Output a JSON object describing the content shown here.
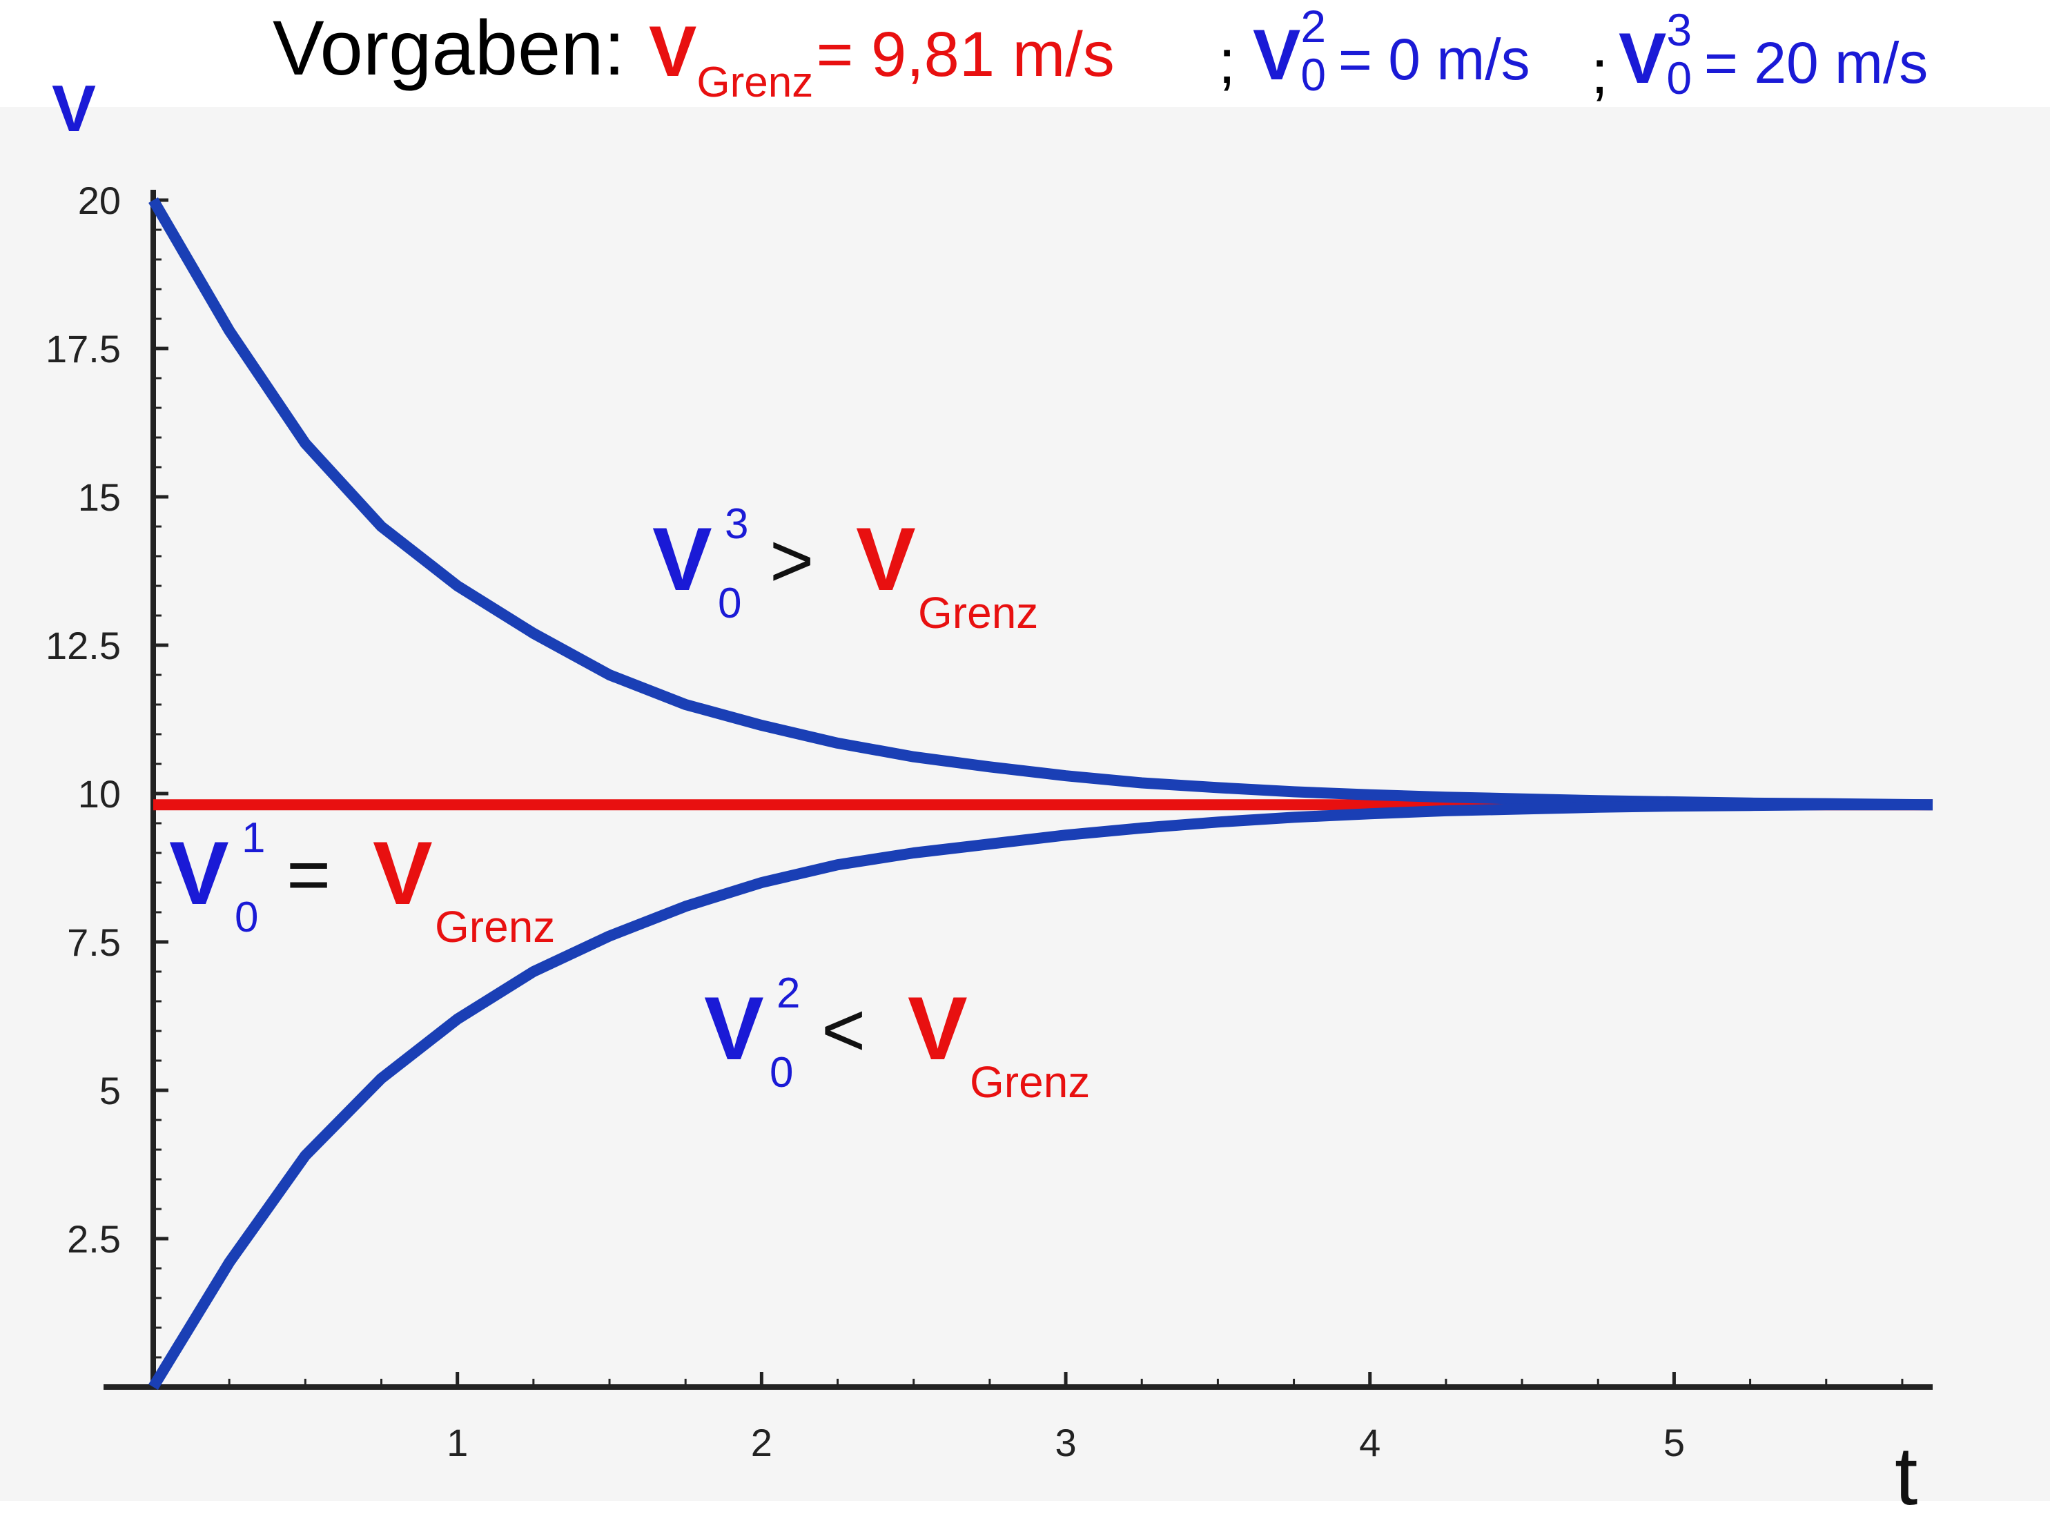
{
  "header": {
    "prefix": "Vorgaben:",
    "items": [
      {
        "symbol": "V",
        "sub": "Grenz",
        "sup": "",
        "rest": "= 9,81 m/s",
        "color": "#e81010"
      },
      {
        "sep": ";",
        "symbol": "V",
        "sub": "0",
        "sup": "2",
        "rest": "= 0 m/s",
        "color": "#1a1ad6"
      },
      {
        "sep": ";",
        "symbol": "V",
        "sub": "0",
        "sup": "3",
        "rest": "= 20 m/s",
        "color": "#1a1ad6"
      }
    ]
  },
  "chart_data": {
    "type": "line",
    "xlabel": "t",
    "ylabel": "V",
    "xlim": [
      -0.15,
      5.9
    ],
    "ylim": [
      -0.05,
      20
    ],
    "xticks": [
      1,
      2,
      3,
      4,
      5
    ],
    "yticks": [
      2.5,
      5,
      7.5,
      10,
      12.5,
      15,
      17.5,
      20
    ],
    "ytick_labels": [
      "2.5",
      "5",
      "7.5",
      "10",
      "12.5",
      "15",
      "17.5",
      "20"
    ],
    "xtick_labels": [
      "1",
      "2",
      "3",
      "4",
      "5"
    ],
    "series": [
      {
        "color": "#e81010",
        "x": [
          0,
          5.85
        ],
        "y": [
          9.81,
          9.81
        ]
      },
      {
        "color": "#1a3fb5",
        "x": [
          0,
          0.25,
          0.5,
          0.75,
          1,
          1.25,
          1.5,
          1.75,
          2,
          2.25,
          2.5,
          2.75,
          3,
          3.25,
          3.5,
          3.75,
          4,
          4.25,
          4.5,
          4.75,
          5,
          5.25,
          5.5,
          5.85
        ],
        "y": [
          20,
          17.8,
          15.9,
          14.5,
          13.5,
          12.7,
          12.0,
          11.5,
          11.15,
          10.85,
          10.62,
          10.45,
          10.3,
          10.18,
          10.1,
          10.03,
          9.98,
          9.94,
          9.91,
          9.88,
          9.86,
          9.84,
          9.83,
          9.81
        ]
      },
      {
        "color": "#1a3fb5",
        "x": [
          0,
          0.25,
          0.5,
          0.75,
          1,
          1.25,
          1.5,
          1.75,
          2,
          2.25,
          2.5,
          2.75,
          3,
          3.25,
          3.5,
          3.75,
          4,
          4.25,
          4.5,
          4.75,
          5,
          5.25,
          5.5,
          5.85
        ],
        "y": [
          0,
          2.1,
          3.9,
          5.2,
          6.2,
          7.0,
          7.6,
          8.1,
          8.5,
          8.8,
          9.0,
          9.15,
          9.3,
          9.42,
          9.52,
          9.6,
          9.66,
          9.71,
          9.74,
          9.77,
          9.79,
          9.8,
          9.81,
          9.81
        ]
      }
    ],
    "annotations": [
      {
        "text": "V",
        "sup": "3",
        "sub": "0",
        "relation": ">",
        "rhs": "V",
        "rhs_sub": "Grenz",
        "x": 1.85,
        "y": 13.8
      },
      {
        "text": "V",
        "sup": "1",
        "sub": "0",
        "relation": "=",
        "rhs": "V",
        "rhs_sub": "Grenz",
        "x": 0.05,
        "y": 8.5
      },
      {
        "text": "V",
        "sup": "2",
        "sub": "0",
        "relation": "<",
        "rhs": "V",
        "rhs_sub": "Grenz",
        "x": 1.95,
        "y": 5.5
      }
    ]
  }
}
